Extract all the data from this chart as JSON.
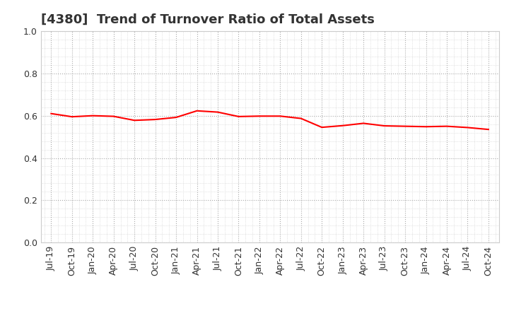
{
  "title": "[4380]  Trend of Turnover Ratio of Total Assets",
  "title_fontsize": 13,
  "line_color": "#FF0000",
  "line_width": 1.5,
  "background_color": "#FFFFFF",
  "ylim": [
    0.0,
    1.0
  ],
  "yticks": [
    0.0,
    0.2,
    0.4,
    0.6,
    0.8,
    1.0
  ],
  "x_labels": [
    "Jul-19",
    "Oct-19",
    "Jan-20",
    "Apr-20",
    "Jul-20",
    "Oct-20",
    "Jan-21",
    "Apr-21",
    "Jul-21",
    "Oct-21",
    "Jan-22",
    "Apr-22",
    "Jul-22",
    "Oct-22",
    "Jan-23",
    "Apr-23",
    "Jul-23",
    "Oct-23",
    "Jan-24",
    "Apr-24",
    "Jul-24",
    "Oct-24"
  ],
  "values": [
    0.61,
    0.595,
    0.6,
    0.597,
    0.578,
    0.582,
    0.592,
    0.623,
    0.617,
    0.596,
    0.598,
    0.598,
    0.587,
    0.545,
    0.553,
    0.564,
    0.552,
    0.55,
    0.548,
    0.55,
    0.544,
    0.535
  ]
}
